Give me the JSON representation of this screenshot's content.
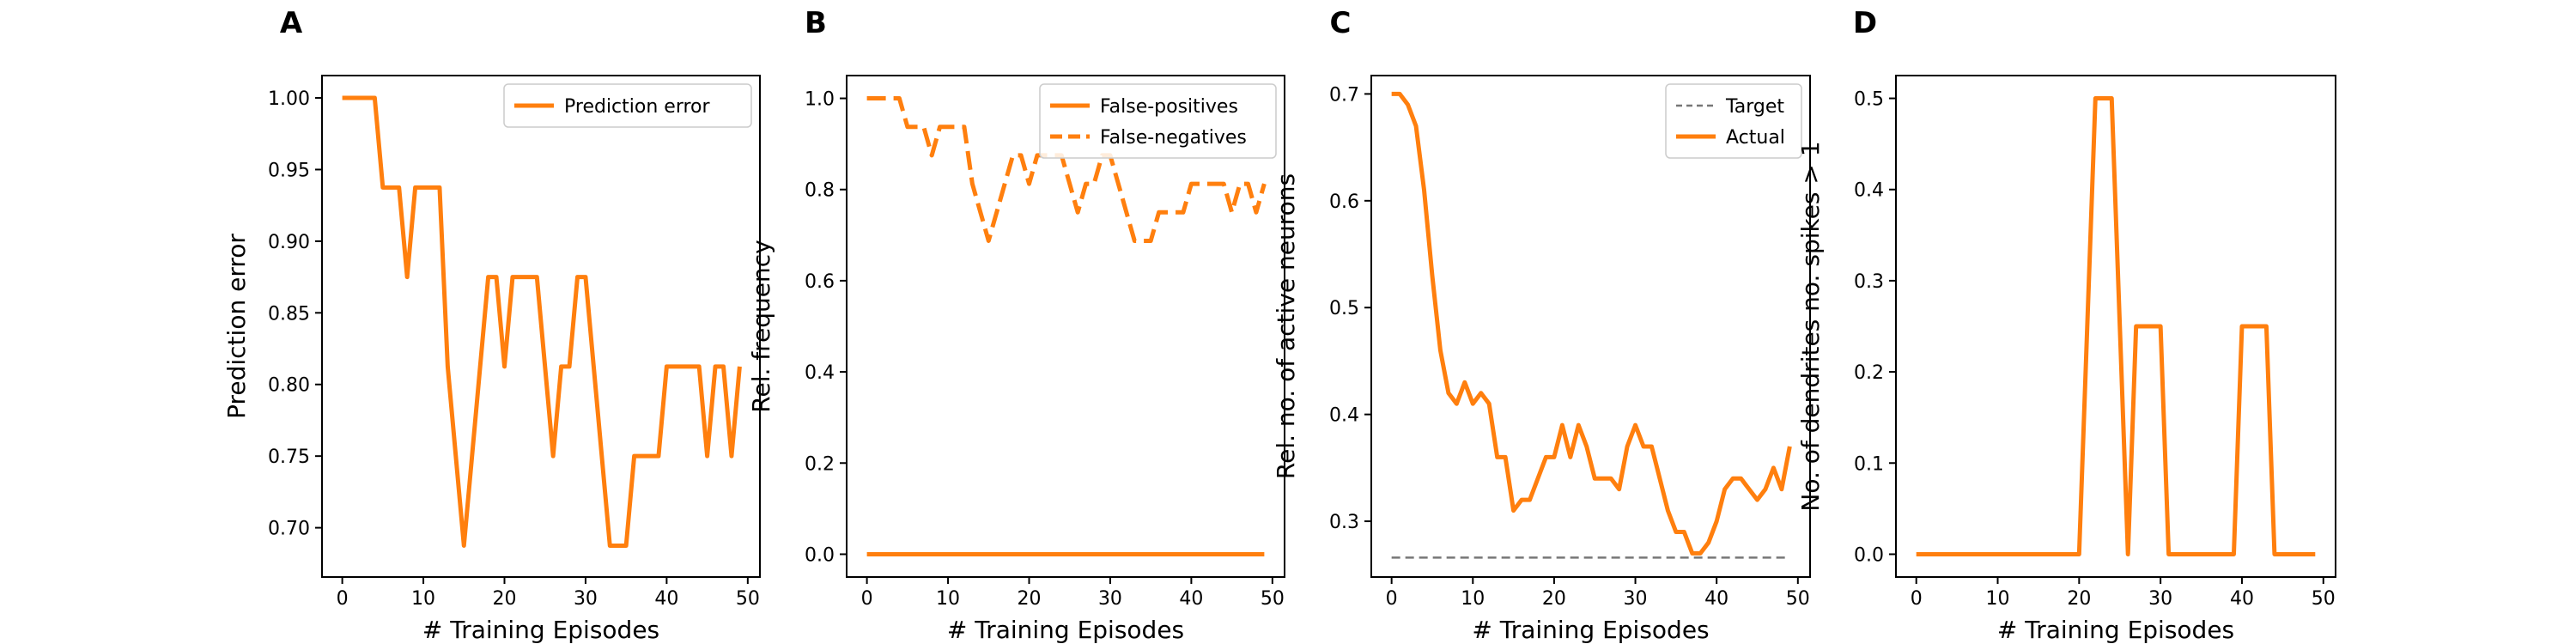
{
  "colors": {
    "series": "#ff7f0e",
    "target": "#777777",
    "axis": "#000000"
  },
  "chart_data": [
    {
      "panel": "A",
      "type": "line",
      "xlabel": "# Training Episodes",
      "ylabel": "Prediction error",
      "xlim": [
        -2.5,
        51.5
      ],
      "ylim": [
        0.6656,
        1.0156
      ],
      "xticks": [
        0,
        10,
        20,
        30,
        40,
        50
      ],
      "xtick_labels": [
        "0",
        "10",
        "20",
        "30",
        "40",
        "50"
      ],
      "yticks": [
        0.7,
        0.75,
        0.8,
        0.85,
        0.9,
        0.95,
        1.0
      ],
      "ytick_labels": [
        "0.70",
        "0.75",
        "0.80",
        "0.85",
        "0.90",
        "0.95",
        "1.00"
      ],
      "legend_position": "top-right",
      "series": [
        {
          "name": "Prediction error",
          "style": "solid",
          "color": "#ff7f0e",
          "x": [
            0,
            1,
            2,
            3,
            4,
            5,
            6,
            7,
            8,
            9,
            10,
            11,
            12,
            13,
            14,
            15,
            16,
            17,
            18,
            19,
            20,
            21,
            22,
            23,
            24,
            25,
            26,
            27,
            28,
            29,
            30,
            31,
            32,
            33,
            34,
            35,
            36,
            37,
            38,
            39,
            40,
            41,
            42,
            43,
            44,
            45,
            46,
            47,
            48,
            49
          ],
          "values": [
            1.0,
            1.0,
            1.0,
            1.0,
            1.0,
            0.9375,
            0.9375,
            0.9375,
            0.875,
            0.9375,
            0.9375,
            0.9375,
            0.9375,
            0.8125,
            0.75,
            0.6875,
            0.75,
            0.8125,
            0.875,
            0.875,
            0.8125,
            0.875,
            0.875,
            0.875,
            0.875,
            0.8125,
            0.75,
            0.8125,
            0.8125,
            0.875,
            0.875,
            0.8125,
            0.75,
            0.6875,
            0.6875,
            0.6875,
            0.75,
            0.75,
            0.75,
            0.75,
            0.8125,
            0.8125,
            0.8125,
            0.8125,
            0.8125,
            0.75,
            0.8125,
            0.8125,
            0.75,
            0.8125
          ]
        }
      ]
    },
    {
      "panel": "B",
      "type": "line",
      "xlabel": "# Training Episodes",
      "ylabel": "Rel. frequency",
      "xlim": [
        -2.5,
        51.5
      ],
      "ylim": [
        -0.05,
        1.05
      ],
      "xticks": [
        0,
        10,
        20,
        30,
        40,
        50
      ],
      "xtick_labels": [
        "0",
        "10",
        "20",
        "30",
        "40",
        "50"
      ],
      "yticks": [
        0.0,
        0.2,
        0.4,
        0.6,
        0.8,
        1.0
      ],
      "ytick_labels": [
        "0.0",
        "0.2",
        "0.4",
        "0.6",
        "0.8",
        "1.0"
      ],
      "legend_position": "top-right",
      "series": [
        {
          "name": "False-positives",
          "style": "solid",
          "color": "#ff7f0e",
          "x": [
            0,
            49
          ],
          "values": [
            0.0,
            0.0
          ]
        },
        {
          "name": "False-negatives",
          "style": "dashed",
          "color": "#ff7f0e",
          "x": [
            0,
            1,
            2,
            3,
            4,
            5,
            6,
            7,
            8,
            9,
            10,
            11,
            12,
            13,
            14,
            15,
            16,
            17,
            18,
            19,
            20,
            21,
            22,
            23,
            24,
            25,
            26,
            27,
            28,
            29,
            30,
            31,
            32,
            33,
            34,
            35,
            36,
            37,
            38,
            39,
            40,
            41,
            42,
            43,
            44,
            45,
            46,
            47,
            48,
            49
          ],
          "values": [
            1.0,
            1.0,
            1.0,
            1.0,
            1.0,
            0.9375,
            0.9375,
            0.9375,
            0.875,
            0.9375,
            0.9375,
            0.9375,
            0.9375,
            0.8125,
            0.75,
            0.6875,
            0.75,
            0.8125,
            0.875,
            0.875,
            0.8125,
            0.875,
            0.875,
            0.875,
            0.875,
            0.8125,
            0.75,
            0.8125,
            0.8125,
            0.875,
            0.875,
            0.8125,
            0.75,
            0.6875,
            0.6875,
            0.6875,
            0.75,
            0.75,
            0.75,
            0.75,
            0.8125,
            0.8125,
            0.8125,
            0.8125,
            0.8125,
            0.75,
            0.8125,
            0.8125,
            0.75,
            0.8125
          ]
        }
      ]
    },
    {
      "panel": "C",
      "type": "line",
      "xlabel": "# Training Episodes",
      "ylabel": "Rel. no. of active neurons",
      "xlim": [
        -2.5,
        51.5
      ],
      "ylim": [
        0.2478,
        0.7172
      ],
      "xticks": [
        0,
        10,
        20,
        30,
        40,
        50
      ],
      "xtick_labels": [
        "0",
        "10",
        "20",
        "30",
        "40",
        "50"
      ],
      "yticks": [
        0.3,
        0.4,
        0.5,
        0.6,
        0.7
      ],
      "ytick_labels": [
        "0.3",
        "0.4",
        "0.5",
        "0.6",
        "0.7"
      ],
      "legend_position": "top-right",
      "series": [
        {
          "name": "Target",
          "style": "dashed-thin",
          "color": "#777777",
          "x": [
            0,
            49
          ],
          "values": [
            0.266,
            0.266
          ]
        },
        {
          "name": "Actual",
          "style": "solid",
          "color": "#ff7f0e",
          "x": [
            0,
            1,
            2,
            3,
            4,
            5,
            6,
            7,
            8,
            9,
            10,
            11,
            12,
            13,
            14,
            15,
            16,
            17,
            18,
            19,
            20,
            21,
            22,
            23,
            24,
            25,
            26,
            27,
            28,
            29,
            30,
            31,
            32,
            33,
            34,
            35,
            36,
            37,
            38,
            39,
            40,
            41,
            42,
            43,
            44,
            45,
            46,
            47,
            48,
            49
          ],
          "values": [
            0.7,
            0.7,
            0.69,
            0.67,
            0.61,
            0.53,
            0.46,
            0.42,
            0.41,
            0.43,
            0.41,
            0.42,
            0.41,
            0.36,
            0.36,
            0.31,
            0.32,
            0.32,
            0.34,
            0.36,
            0.36,
            0.39,
            0.36,
            0.39,
            0.37,
            0.34,
            0.34,
            0.34,
            0.33,
            0.37,
            0.39,
            0.37,
            0.37,
            0.34,
            0.31,
            0.29,
            0.29,
            0.27,
            0.27,
            0.28,
            0.3,
            0.33,
            0.34,
            0.34,
            0.33,
            0.32,
            0.33,
            0.35,
            0.33,
            0.37
          ]
        }
      ]
    },
    {
      "panel": "D",
      "type": "line",
      "xlabel": "# Training Episodes",
      "ylabel": "No. of dendrites no. spikes > 1",
      "xlim": [
        -2.5,
        51.5
      ],
      "ylim": [
        -0.025,
        0.525
      ],
      "xticks": [
        0,
        10,
        20,
        30,
        40,
        50
      ],
      "xtick_labels": [
        "0",
        "10",
        "20",
        "30",
        "40",
        "50"
      ],
      "yticks": [
        0.0,
        0.1,
        0.2,
        0.3,
        0.4,
        0.5
      ],
      "ytick_labels": [
        "0.0",
        "0.1",
        "0.2",
        "0.3",
        "0.4",
        "0.5"
      ],
      "series": [
        {
          "style": "solid",
          "color": "#ff7f0e",
          "x": [
            0,
            1,
            2,
            3,
            4,
            5,
            6,
            7,
            8,
            9,
            10,
            11,
            12,
            13,
            14,
            15,
            16,
            17,
            18,
            19,
            20,
            21,
            22,
            23,
            24,
            25,
            26,
            27,
            28,
            29,
            30,
            31,
            32,
            33,
            34,
            35,
            36,
            37,
            38,
            39,
            40,
            41,
            42,
            43,
            44,
            45,
            46,
            47,
            48,
            49
          ],
          "values": [
            0,
            0,
            0,
            0,
            0,
            0,
            0,
            0,
            0,
            0,
            0,
            0,
            0,
            0,
            0,
            0,
            0,
            0,
            0,
            0,
            0,
            0.25,
            0.5,
            0.5,
            0.5,
            0.25,
            0,
            0.25,
            0.25,
            0.25,
            0.25,
            0,
            0,
            0,
            0,
            0,
            0,
            0,
            0,
            0,
            0.25,
            0.25,
            0.25,
            0.25,
            0,
            0,
            0,
            0,
            0,
            0
          ]
        }
      ]
    }
  ]
}
